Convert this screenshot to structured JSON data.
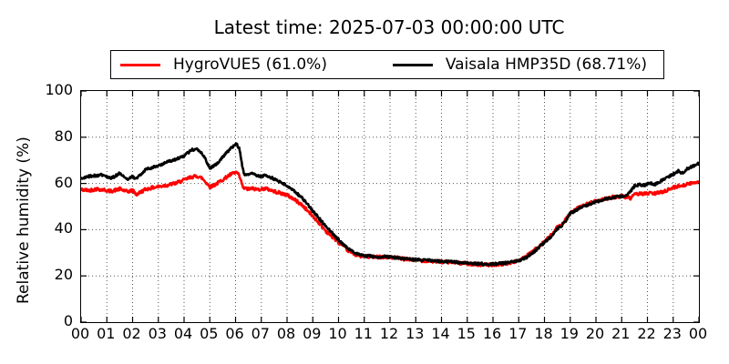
{
  "title": "Latest time: 2025-07-03 00:00:00 UTC",
  "chart_data": {
    "type": "line",
    "title": "Latest time: 2025-07-03 00:00:00 UTC",
    "xlabel": "",
    "ylabel": "Relative humidity (%)",
    "xlim": [
      0,
      24
    ],
    "ylim": [
      0,
      100
    ],
    "x_tick_labels": [
      "00",
      "01",
      "02",
      "03",
      "04",
      "05",
      "06",
      "07",
      "08",
      "09",
      "10",
      "11",
      "12",
      "13",
      "14",
      "15",
      "16",
      "17",
      "18",
      "19",
      "20",
      "21",
      "22",
      "23",
      "00"
    ],
    "y_ticks": [
      0,
      20,
      40,
      60,
      80,
      100
    ],
    "grid": "dotted",
    "grid_color": "#555555",
    "legend_position": "upper center",
    "series": [
      {
        "name": "HygroVUE5",
        "legend_label": "HygroVUE5 (61.0%)",
        "latest_value_pct": 61.0,
        "color": "#ff0000",
        "noise_amplitude": 0.7,
        "points": [
          [
            0,
            57.3
          ],
          [
            0.3,
            57.0
          ],
          [
            0.6,
            57.6
          ],
          [
            0.9,
            57.2
          ],
          [
            1.15,
            56.6
          ],
          [
            1.5,
            57.6
          ],
          [
            1.8,
            56.4
          ],
          [
            2.0,
            57.0
          ],
          [
            2.15,
            55.2
          ],
          [
            2.5,
            57.5
          ],
          [
            2.8,
            58.2
          ],
          [
            3.1,
            58.8
          ],
          [
            3.4,
            59.4
          ],
          [
            3.7,
            60.2
          ],
          [
            4.0,
            61.5
          ],
          [
            4.3,
            62.8
          ],
          [
            4.5,
            63.2
          ],
          [
            4.7,
            62.3
          ],
          [
            4.85,
            60.5
          ],
          [
            5.0,
            58.5
          ],
          [
            5.15,
            59.2
          ],
          [
            5.35,
            60.5
          ],
          [
            5.55,
            62.0
          ],
          [
            5.75,
            63.5
          ],
          [
            5.9,
            64.3
          ],
          [
            6.05,
            64.8
          ],
          [
            6.15,
            63.0
          ],
          [
            6.3,
            58.0
          ],
          [
            6.5,
            57.5
          ],
          [
            6.65,
            57.9
          ],
          [
            6.8,
            57.4
          ],
          [
            7.0,
            57.6
          ],
          [
            7.15,
            57.8
          ],
          [
            7.3,
            57.4
          ],
          [
            7.5,
            56.6
          ],
          [
            7.75,
            55.8
          ],
          [
            8.0,
            55.0
          ],
          [
            8.3,
            53.0
          ],
          [
            8.6,
            50.5
          ],
          [
            8.9,
            47.0
          ],
          [
            9.2,
            43.5
          ],
          [
            9.5,
            39.5
          ],
          [
            9.8,
            36.5
          ],
          [
            10.1,
            33.5
          ],
          [
            10.4,
            30.8
          ],
          [
            10.7,
            29.0
          ],
          [
            11.0,
            28.4
          ],
          [
            11.4,
            28.2
          ],
          [
            11.8,
            28.3
          ],
          [
            12.2,
            27.8
          ],
          [
            12.6,
            27.2
          ],
          [
            13.0,
            26.8
          ],
          [
            13.4,
            26.6
          ],
          [
            13.8,
            26.2
          ],
          [
            14.2,
            26.0
          ],
          [
            14.6,
            25.7
          ],
          [
            15.0,
            25.3
          ],
          [
            15.4,
            25.0
          ],
          [
            15.8,
            24.8
          ],
          [
            16.2,
            25.0
          ],
          [
            16.6,
            25.5
          ],
          [
            17.0,
            26.6
          ],
          [
            17.3,
            28.5
          ],
          [
            17.6,
            31.0
          ],
          [
            17.9,
            34.0
          ],
          [
            18.1,
            36.0
          ],
          [
            18.3,
            38.0
          ],
          [
            18.5,
            41.0
          ],
          [
            18.65,
            42.0
          ],
          [
            18.8,
            44.0
          ],
          [
            19.0,
            47.2
          ],
          [
            19.3,
            49.3
          ],
          [
            19.6,
            50.8
          ],
          [
            20.0,
            52.3
          ],
          [
            20.3,
            53.3
          ],
          [
            20.6,
            54.0
          ],
          [
            21.0,
            54.5
          ],
          [
            21.2,
            54.0
          ],
          [
            21.35,
            53.6
          ],
          [
            21.5,
            55.0
          ],
          [
            21.7,
            55.8
          ],
          [
            21.9,
            55.5
          ],
          [
            22.1,
            55.8
          ],
          [
            22.3,
            55.6
          ],
          [
            22.5,
            56.2
          ],
          [
            22.7,
            56.8
          ],
          [
            23.0,
            58.2
          ],
          [
            23.2,
            58.8
          ],
          [
            23.4,
            59.3
          ],
          [
            23.6,
            59.8
          ],
          [
            23.8,
            60.3
          ],
          [
            24.0,
            61.0
          ]
        ]
      },
      {
        "name": "Vaisala HMP35D",
        "legend_label": "Vaisala HMP35D (68.71%)",
        "latest_value_pct": 68.71,
        "color": "#000000",
        "noise_amplitude": 0.55,
        "points": [
          [
            0,
            62.0
          ],
          [
            0.3,
            63.0
          ],
          [
            0.6,
            63.5
          ],
          [
            0.9,
            63.8
          ],
          [
            1.15,
            62.0
          ],
          [
            1.5,
            64.5
          ],
          [
            1.8,
            61.8
          ],
          [
            2.0,
            63.0
          ],
          [
            2.15,
            62.0
          ],
          [
            2.5,
            66.0
          ],
          [
            2.8,
            67.0
          ],
          [
            3.1,
            68.0
          ],
          [
            3.4,
            69.5
          ],
          [
            3.7,
            70.5
          ],
          [
            4.0,
            72.0
          ],
          [
            4.3,
            74.5
          ],
          [
            4.5,
            75.0
          ],
          [
            4.7,
            73.0
          ],
          [
            4.85,
            70.0
          ],
          [
            5.0,
            66.5
          ],
          [
            5.15,
            67.5
          ],
          [
            5.35,
            69.5
          ],
          [
            5.55,
            72.0
          ],
          [
            5.75,
            74.5
          ],
          [
            5.9,
            76.0
          ],
          [
            6.05,
            77.0
          ],
          [
            6.15,
            75.0
          ],
          [
            6.25,
            68.0
          ],
          [
            6.35,
            63.5
          ],
          [
            6.5,
            64.0
          ],
          [
            6.65,
            64.5
          ],
          [
            6.8,
            63.5
          ],
          [
            7.0,
            63.0
          ],
          [
            7.15,
            63.5
          ],
          [
            7.3,
            63.0
          ],
          [
            7.5,
            62.0
          ],
          [
            7.75,
            60.5
          ],
          [
            8.0,
            59.0
          ],
          [
            8.3,
            56.5
          ],
          [
            8.6,
            53.5
          ],
          [
            8.9,
            49.5
          ],
          [
            9.2,
            45.5
          ],
          [
            9.5,
            41.5
          ],
          [
            9.8,
            38.0
          ],
          [
            10.1,
            34.5
          ],
          [
            10.4,
            31.5
          ],
          [
            10.7,
            29.5
          ],
          [
            11.0,
            28.7
          ],
          [
            11.4,
            28.4
          ],
          [
            11.8,
            28.3
          ],
          [
            12.2,
            28.0
          ],
          [
            12.6,
            27.4
          ],
          [
            13.0,
            27.0
          ],
          [
            13.4,
            26.8
          ],
          [
            13.8,
            26.4
          ],
          [
            14.2,
            26.2
          ],
          [
            14.6,
            25.9
          ],
          [
            15.0,
            25.6
          ],
          [
            15.4,
            25.3
          ],
          [
            15.8,
            25.1
          ],
          [
            16.2,
            25.3
          ],
          [
            16.6,
            25.7
          ],
          [
            17.0,
            26.6
          ],
          [
            17.3,
            28.0
          ],
          [
            17.6,
            30.5
          ],
          [
            17.9,
            33.5
          ],
          [
            18.1,
            35.5
          ],
          [
            18.3,
            37.5
          ],
          [
            18.5,
            40.5
          ],
          [
            18.65,
            41.5
          ],
          [
            18.8,
            43.5
          ],
          [
            19.0,
            47.0
          ],
          [
            19.3,
            49.0
          ],
          [
            19.6,
            50.5
          ],
          [
            20.0,
            52.0
          ],
          [
            20.3,
            53.0
          ],
          [
            20.6,
            53.8
          ],
          [
            21.0,
            54.5
          ],
          [
            21.2,
            55.0
          ],
          [
            21.35,
            56.5
          ],
          [
            21.5,
            59.0
          ],
          [
            21.7,
            59.5
          ],
          [
            21.9,
            59.3
          ],
          [
            22.1,
            60.0
          ],
          [
            22.3,
            59.6
          ],
          [
            22.5,
            61.0
          ],
          [
            22.7,
            62.0
          ],
          [
            23.0,
            64.0
          ],
          [
            23.2,
            65.5
          ],
          [
            23.35,
            64.3
          ],
          [
            23.5,
            66.0
          ],
          [
            23.7,
            67.2
          ],
          [
            23.85,
            68.0
          ],
          [
            24.0,
            68.7
          ]
        ]
      }
    ]
  }
}
